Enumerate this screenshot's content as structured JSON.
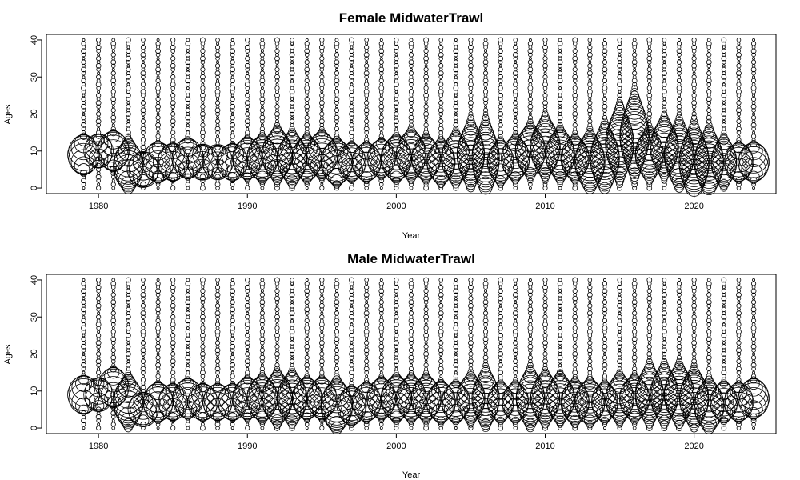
{
  "chart_data": [
    {
      "type": "bubble",
      "title": "Female MidwaterTrawl",
      "xlabel": "Year",
      "ylabel": "Ages",
      "xlim": [
        1976.5,
        2025.5
      ],
      "ylim": [
        -1.5,
        41.5
      ],
      "xticks": [
        1980,
        1990,
        2000,
        2010,
        2020
      ],
      "yticks": [
        0,
        10,
        20,
        30,
        40
      ],
      "ages_range": [
        0,
        40
      ],
      "years": [
        1979,
        1980,
        1981,
        1982,
        1983,
        1984,
        1985,
        1986,
        1987,
        1988,
        1989,
        1990,
        1991,
        1992,
        1993,
        1994,
        1995,
        1996,
        1997,
        1998,
        1999,
        2000,
        2001,
        2002,
        2003,
        2004,
        2005,
        2006,
        2007,
        2008,
        2009,
        2010,
        2011,
        2012,
        2013,
        2014,
        2015,
        2016,
        2017,
        2018,
        2019,
        2020,
        2021,
        2022,
        2023,
        2024
      ],
      "modal_age": [
        9,
        10,
        10,
        6,
        5,
        7,
        7,
        8,
        7,
        7,
        7,
        8,
        8,
        9,
        8,
        8,
        9,
        7,
        7,
        7,
        8,
        8,
        9,
        8,
        7,
        8,
        9,
        8,
        7,
        8,
        10,
        11,
        9,
        8,
        7,
        8,
        12,
        14,
        9,
        11,
        9,
        7,
        7,
        7,
        7,
        7
      ],
      "peak_size": [
        1.0,
        0.85,
        1.0,
        0.9,
        1.0,
        1.0,
        0.95,
        1.0,
        1.0,
        0.95,
        0.9,
        0.9,
        0.95,
        0.95,
        0.9,
        0.9,
        1.0,
        1.0,
        0.8,
        0.85,
        0.8,
        0.95,
        0.9,
        0.85,
        0.8,
        0.85,
        0.75,
        0.75,
        0.7,
        0.8,
        0.9,
        0.9,
        0.85,
        0.8,
        0.9,
        0.85,
        0.8,
        0.85,
        0.8,
        0.8,
        0.9,
        0.9,
        0.85,
        0.65,
        0.85,
        0.95
      ],
      "spread": [
        2.0,
        1.5,
        2.0,
        3.0,
        1.5,
        2.0,
        1.8,
        2.0,
        1.5,
        1.5,
        1.8,
        2.2,
        2.5,
        3.0,
        3.0,
        2.5,
        2.5,
        2.5,
        2.0,
        2.0,
        2.0,
        2.5,
        2.8,
        2.5,
        2.5,
        3.0,
        4.0,
        4.5,
        2.5,
        2.5,
        3.0,
        3.5,
        3.0,
        2.5,
        3.5,
        4.0,
        4.5,
        5.0,
        3.0,
        3.5,
        4.0,
        4.5,
        4.0,
        3.0,
        2.0,
        2.0
      ]
    },
    {
      "type": "bubble",
      "title": "Male MidwaterTrawl",
      "xlabel": "Year",
      "ylabel": "Ages",
      "xlim": [
        1976.5,
        2025.5
      ],
      "ylim": [
        -1.5,
        41.5
      ],
      "xticks": [
        1980,
        1990,
        2000,
        2010,
        2020
      ],
      "yticks": [
        0,
        10,
        20,
        30,
        40
      ],
      "ages_range": [
        0,
        40
      ],
      "years": [
        1979,
        1980,
        1981,
        1982,
        1983,
        1984,
        1985,
        1986,
        1987,
        1988,
        1989,
        1990,
        1991,
        1992,
        1993,
        1994,
        1995,
        1996,
        1997,
        1998,
        1999,
        2000,
        2001,
        2002,
        2003,
        2004,
        2005,
        2006,
        2007,
        2008,
        2009,
        2010,
        2011,
        2012,
        2013,
        2014,
        2015,
        2016,
        2017,
        2018,
        2019,
        2020,
        2021,
        2022,
        2023,
        2024
      ],
      "modal_age": [
        9,
        9,
        11,
        7,
        5,
        7,
        7,
        8,
        7,
        7,
        7,
        8,
        8,
        8,
        8,
        8,
        8,
        6,
        6,
        7,
        8,
        8,
        8,
        8,
        7,
        7,
        8,
        8,
        7,
        7,
        8,
        8,
        8,
        7,
        7,
        7,
        8,
        8,
        9,
        9,
        9,
        8,
        6,
        7,
        7,
        8
      ],
      "peak_size": [
        1.0,
        0.85,
        0.95,
        0.9,
        0.9,
        0.9,
        0.85,
        0.95,
        0.9,
        0.85,
        0.85,
        0.9,
        0.95,
        0.95,
        0.9,
        0.9,
        0.9,
        1.0,
        0.85,
        0.85,
        0.85,
        0.95,
        0.9,
        0.9,
        0.85,
        0.8,
        0.8,
        0.75,
        0.7,
        0.7,
        0.8,
        0.85,
        0.85,
        0.8,
        0.9,
        0.7,
        0.8,
        0.9,
        0.8,
        0.8,
        0.9,
        0.85,
        0.9,
        0.75,
        0.85,
        0.95
      ],
      "spread": [
        1.8,
        1.5,
        2.0,
        3.0,
        1.5,
        2.0,
        1.8,
        2.0,
        1.8,
        1.8,
        1.8,
        2.2,
        2.5,
        3.0,
        3.0,
        2.2,
        2.2,
        3.0,
        2.0,
        2.0,
        2.2,
        2.5,
        2.5,
        2.5,
        2.2,
        2.2,
        2.8,
        3.5,
        2.2,
        2.2,
        3.5,
        3.0,
        2.8,
        2.5,
        2.5,
        2.2,
        2.8,
        2.5,
        3.5,
        3.5,
        3.5,
        3.5,
        3.0,
        2.2,
        2.0,
        2.0
      ]
    }
  ]
}
